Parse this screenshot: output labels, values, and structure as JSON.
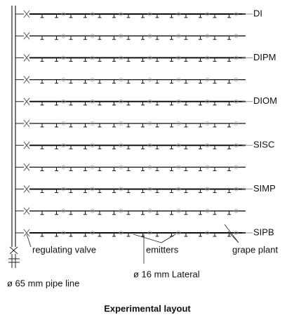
{
  "treatments": [
    "DI",
    "DIPM",
    "DIOM",
    "SISC",
    "SIMP",
    "SIPB"
  ],
  "annotations": {
    "valve": "regulating valve",
    "emitters": "emitters",
    "plant": "grape plant",
    "main": "ø 65 mm pipe line",
    "lateral": "ø 16 mm Lateral"
  },
  "caption": "Experimental layout"
}
